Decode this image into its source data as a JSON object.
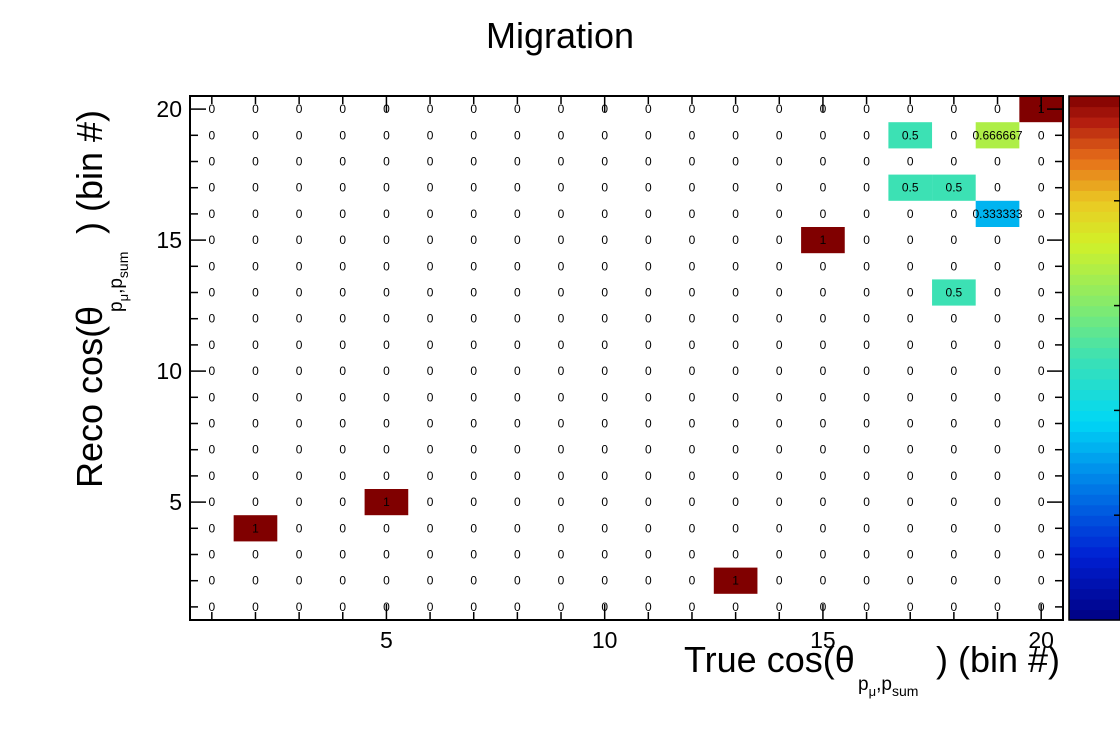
{
  "chart_data": {
    "type": "heatmap",
    "title": "Migration",
    "xlabel": "True cos(θ_{p⃗_μ,p⃗_sum}) (bin #)",
    "ylabel": "Reco cos(θ_{p⃗_μ,p⃗_sum}) (bin #)",
    "xlabel_parts": {
      "prefix": "True cos(θ",
      "sub_p": "p",
      "sub_mu": "μ",
      "sub_comma": ",",
      "sub_sum": "sum",
      "suffix": ") (bin #)"
    },
    "ylabel_parts": {
      "prefix": "Reco cos(θ",
      "sub_p": "p",
      "sub_mu": "μ",
      "sub_comma": ",",
      "sub_sum": "sum",
      "suffix": ") (bin #)"
    },
    "x_range": [
      0.5,
      20.5
    ],
    "y_range": [
      0.5,
      20.5
    ],
    "x_ticks": [
      5,
      10,
      15,
      20
    ],
    "y_ticks": [
      5,
      10,
      15,
      20
    ],
    "z_range": [
      0,
      1
    ],
    "colormap": "rainbow (dark blue → cyan → green → yellow → orange → dark red)",
    "n_bins_x": 20,
    "n_bins_y": 20,
    "default_cell_value": 0,
    "nonzero_cells": [
      {
        "x": 2,
        "y": 4,
        "value": 1,
        "label": "1"
      },
      {
        "x": 5,
        "y": 5,
        "value": 1,
        "label": "1"
      },
      {
        "x": 13,
        "y": 2,
        "value": 1,
        "label": "1"
      },
      {
        "x": 15,
        "y": 15,
        "value": 1,
        "label": "1"
      },
      {
        "x": 18,
        "y": 13,
        "value": 0.5,
        "label": "0.5"
      },
      {
        "x": 17,
        "y": 17,
        "value": 0.5,
        "label": "0.5"
      },
      {
        "x": 18,
        "y": 17,
        "value": 0.5,
        "label": "0.5"
      },
      {
        "x": 19,
        "y": 16,
        "value": 0.333333,
        "label": "0.333333"
      },
      {
        "x": 17,
        "y": 19,
        "value": 0.5,
        "label": "0.5"
      },
      {
        "x": 19,
        "y": 19,
        "value": 0.666667,
        "label": "0.666667"
      },
      {
        "x": 20,
        "y": 20,
        "value": 1,
        "label": "1"
      }
    ],
    "zero_label": "0",
    "legend": "color palette bar on right, no tick labels shown"
  }
}
